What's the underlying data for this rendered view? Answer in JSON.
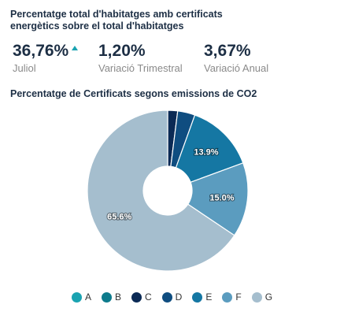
{
  "header": {
    "title": "Percentatge total d'habitatges amb certificats energètics sobre el total d'habitatges"
  },
  "kpis": [
    {
      "value": "36,76%",
      "label": "Juliol",
      "trend": "up"
    },
    {
      "value": "1,20%",
      "label": "Variació Trimestral"
    },
    {
      "value": "3,67%",
      "label": "Variació Anual"
    }
  ],
  "colors": {
    "trend_up": "#1aa3b1"
  },
  "chart_data": {
    "type": "pie",
    "variant": "donut",
    "title": "Percentatge de Certificats segons emissions de CO2",
    "categories": [
      "A",
      "B",
      "C",
      "D",
      "E",
      "F",
      "G"
    ],
    "values": [
      0.0,
      0.0,
      2.0,
      3.5,
      13.9,
      15.0,
      65.6
    ],
    "data_labels": [
      "",
      "",
      "",
      "",
      "13.9%",
      "15.0%",
      "65.6%"
    ],
    "colors": [
      "#1aa3b1",
      "#0d7b8c",
      "#0b2a55",
      "#0f4d80",
      "#1577a3",
      "#5b9cbf",
      "#a5bece"
    ],
    "legend": "bottom"
  }
}
